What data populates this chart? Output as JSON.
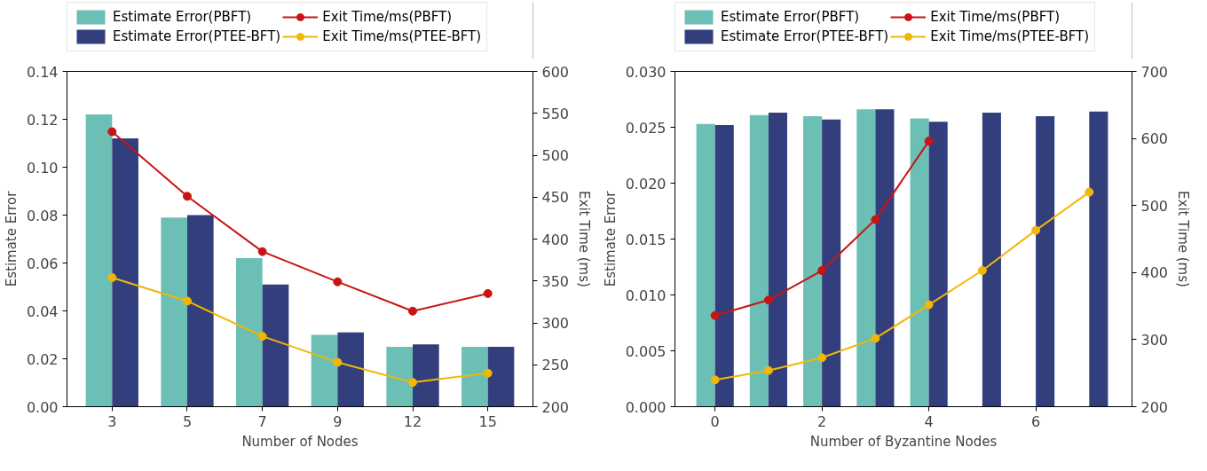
{
  "chart_data": [
    {
      "type": "bar",
      "xlabel": "Number of Nodes",
      "ylabel": "Estimate Error",
      "y2label": "Exit Time (ms)",
      "categories": [
        "3",
        "5",
        "7",
        "9",
        "12",
        "15"
      ],
      "series": [
        {
          "name": "Estimate Error(PBFT)",
          "color": "#6bbfb5",
          "values": [
            0.122,
            0.079,
            0.062,
            0.03,
            0.025,
            0.025
          ]
        },
        {
          "name": "Estimate Error(PTEE-BFT)",
          "color": "#323f7c",
          "values": [
            0.112,
            0.08,
            0.051,
            0.031,
            0.026,
            0.025
          ]
        },
        {
          "name": "Exit Time/ms(PBFT)",
          "type": "line",
          "axis": "y2",
          "color": "#c81414",
          "values": [
            528,
            451,
            385,
            349,
            314,
            335
          ]
        },
        {
          "name": "Exit Time/ms(PTEE-BFT)",
          "type": "line",
          "axis": "y2",
          "color": "#f2b705",
          "values": [
            354,
            326,
            284,
            253,
            229,
            240
          ]
        }
      ],
      "ylim": [
        0,
        0.14
      ],
      "yticks": [
        {
          "value": 0,
          "label": "0.00"
        },
        {
          "value": 0.02,
          "label": "0.02"
        },
        {
          "value": 0.04,
          "label": "0.04"
        },
        {
          "value": 0.06,
          "label": "0.06"
        },
        {
          "value": 0.08,
          "label": "0.08"
        },
        {
          "value": 0.1,
          "label": "0.10"
        },
        {
          "value": 0.12,
          "label": "0.12"
        },
        {
          "value": 0.14,
          "label": "0.14"
        }
      ],
      "y2lim": [
        200,
        600
      ],
      "y2ticks": [
        200,
        250,
        300,
        350,
        400,
        450,
        500,
        550,
        600
      ],
      "marker": "circle",
      "line_style": "solid",
      "grid": false,
      "legend": "top"
    },
    {
      "type": "bar",
      "xlabel": "Number of Byzantine Nodes",
      "ylabel": "Estimate Error",
      "y2label": "Exit Time (ms)",
      "x": [
        0,
        1,
        2,
        3,
        4,
        5,
        6,
        7
      ],
      "series": [
        {
          "name": "Estimate Error(PBFT)",
          "color": "#6bbfb5",
          "values": [
            0.0253,
            0.0261,
            0.026,
            0.0266,
            0.0258,
            null,
            null,
            null
          ]
        },
        {
          "name": "Estimate Error(PTEE-BFT)",
          "color": "#323f7c",
          "values": [
            0.0252,
            0.0263,
            0.0257,
            0.0266,
            0.0255,
            0.0263,
            0.026,
            0.0264
          ]
        },
        {
          "name": "Exit Time/ms(PBFT)",
          "type": "line",
          "axis": "y2",
          "color": "#c81414",
          "values": [
            336,
            359,
            403,
            479,
            596,
            null,
            null,
            null
          ]
        },
        {
          "name": "Exit Time/ms(PTEE-BFT)",
          "type": "line",
          "axis": "y2",
          "color": "#f2b705",
          "values": [
            240,
            254,
            273,
            302,
            352,
            403,
            463,
            520
          ]
        }
      ],
      "xlim": [
        -0.75,
        7.8
      ],
      "xticks": [
        0,
        2,
        4,
        6
      ],
      "ylim": [
        0,
        0.03
      ],
      "yticks": [
        {
          "value": 0,
          "label": "0.000"
        },
        {
          "value": 0.005,
          "label": "0.005"
        },
        {
          "value": 0.01,
          "label": "0.010"
        },
        {
          "value": 0.015,
          "label": "0.015"
        },
        {
          "value": 0.02,
          "label": "0.020"
        },
        {
          "value": 0.025,
          "label": "0.025"
        },
        {
          "value": 0.03,
          "label": "0.030"
        }
      ],
      "y2lim": [
        200,
        700
      ],
      "y2ticks": [
        200,
        300,
        400,
        500,
        600,
        700
      ],
      "marker": "circle",
      "line_style": "solid",
      "grid": false,
      "legend": "top"
    }
  ]
}
